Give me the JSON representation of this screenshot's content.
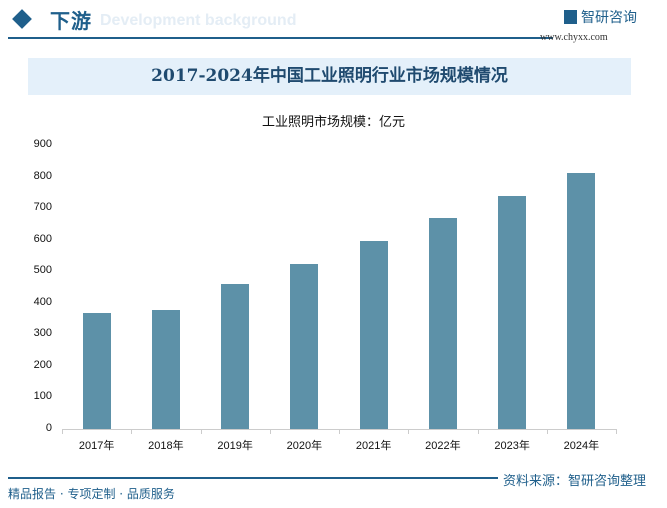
{
  "header": {
    "section": "下游",
    "subtitle": "Development background",
    "brand": "智研咨询",
    "url": "www.chyxx.com"
  },
  "colors": {
    "accent": "#1f5f8b",
    "bar": "#5d91a8",
    "title_bg": "#e4f0fa"
  },
  "chart_data": {
    "type": "bar",
    "title": "2017-2024年中国工业照明行业市场规模情况",
    "unit_label": "工业照明市场规模：亿元",
    "categories": [
      "2017年",
      "2018年",
      "2019年",
      "2020年",
      "2021年",
      "2022年",
      "2023年",
      "2024年"
    ],
    "values": [
      368,
      377,
      460,
      523,
      596,
      669,
      739,
      812
    ],
    "ylim": [
      0,
      900
    ],
    "yticks": [
      "0",
      "100",
      "200",
      "300",
      "400",
      "500",
      "600",
      "700",
      "800",
      "900"
    ],
    "grid": false
  },
  "footer": {
    "source": "资料来源：智研咨询整理",
    "tagline": "精品报告 · 专项定制 · 品质服务"
  }
}
